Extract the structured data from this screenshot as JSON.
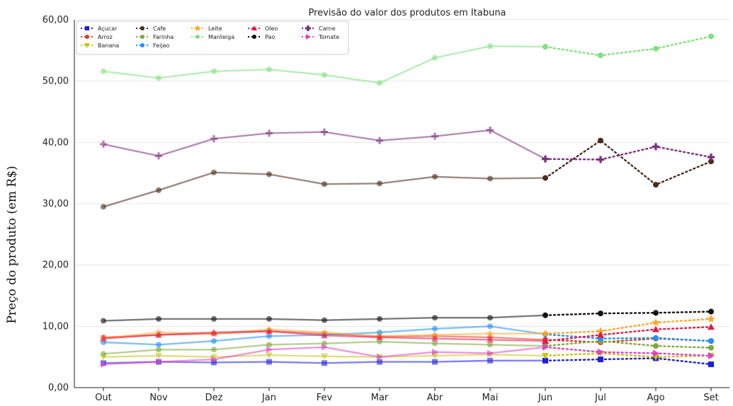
{
  "chart_data": {
    "type": "line",
    "title": "Previsão do valor dos produtos em Itabuna",
    "ylabel": "Preço do produto (em R$)",
    "xlabel": "",
    "categories": [
      "Out",
      "Nov",
      "Dez",
      "Jan",
      "Fev",
      "Mar",
      "Abr",
      "Mai",
      "Jun",
      "Jul",
      "Ago",
      "Set"
    ],
    "ylim": [
      0,
      60
    ],
    "yticks": [
      {
        "value": 0,
        "label": "0,00"
      },
      {
        "value": 10,
        "label": "10,00"
      },
      {
        "value": 20,
        "label": "20,00"
      },
      {
        "value": 30,
        "label": "30,00"
      },
      {
        "value": 40,
        "label": "40,00"
      },
      {
        "value": 50,
        "label": "50,00"
      },
      {
        "value": 60,
        "label": "60,00"
      }
    ],
    "grid": "horizontal",
    "legend_position": "top-left",
    "forecast_start_index": 8,
    "series": [
      {
        "name": "Açucar",
        "color": "#1f1fd8",
        "marker": "square",
        "values": [
          4.0,
          4.2,
          4.1,
          4.2,
          4.0,
          4.2,
          4.2,
          4.4,
          4.4,
          4.6,
          4.8,
          3.8
        ]
      },
      {
        "name": "Arroz",
        "color": "#e03a2b",
        "marker": "circle",
        "values": [
          8.2,
          8.6,
          8.8,
          9.2,
          8.8,
          8.3,
          8.4,
          8.2,
          7.8,
          7.4,
          8.0,
          7.6
        ]
      },
      {
        "name": "Banana",
        "color": "#c9c417",
        "marker": "triangle-down",
        "values": [
          5.0,
          5.2,
          5.0,
          5.3,
          5.1,
          5.0,
          5.2,
          5.4,
          5.2,
          5.6,
          5.0,
          5.2
        ]
      },
      {
        "name": "Cafe",
        "color": "#4a2a1e",
        "marker": "circle",
        "values": [
          29.5,
          32.2,
          35.1,
          34.8,
          33.2,
          33.3,
          34.4,
          34.1,
          34.2,
          40.3,
          33.1,
          36.9
        ]
      },
      {
        "name": "Farinha",
        "color": "#7fa83a",
        "marker": "circle",
        "values": [
          5.5,
          6.2,
          6.2,
          7.0,
          7.2,
          7.5,
          7.2,
          7.0,
          6.8,
          7.6,
          6.8,
          6.5
        ]
      },
      {
        "name": "Feijao",
        "color": "#1e90ff",
        "marker": "circle",
        "values": [
          7.4,
          7.0,
          7.6,
          8.4,
          8.6,
          9.0,
          9.6,
          10.0,
          8.7,
          8.0,
          8.1,
          7.6
        ]
      },
      {
        "name": "Leite",
        "color": "#ffa726",
        "marker": "star",
        "values": [
          8.0,
          9.0,
          8.8,
          9.5,
          9.0,
          8.4,
          8.6,
          8.8,
          8.8,
          9.2,
          10.6,
          11.2
        ]
      },
      {
        "name": "Manteiga",
        "color": "#7ee27e",
        "marker": "circle",
        "values": [
          51.6,
          50.5,
          51.6,
          51.9,
          51.0,
          49.7,
          53.8,
          55.7,
          55.6,
          54.2,
          55.3,
          57.3
        ]
      },
      {
        "name": "Oleo",
        "color": "#e6194b",
        "marker": "triangle-up",
        "values": [
          8.0,
          8.6,
          9.0,
          9.2,
          8.5,
          8.2,
          8.0,
          7.8,
          7.6,
          8.6,
          9.5,
          9.9
        ]
      },
      {
        "name": "Pao",
        "color": "#111111",
        "marker": "circle",
        "values": [
          10.9,
          11.2,
          11.2,
          11.2,
          11.0,
          11.2,
          11.4,
          11.4,
          11.8,
          12.1,
          12.2,
          12.4
        ]
      },
      {
        "name": "Carne",
        "color": "#7b2d80",
        "marker": "plus",
        "values": [
          39.7,
          37.8,
          40.6,
          41.5,
          41.7,
          40.3,
          41.0,
          42.0,
          37.3,
          37.2,
          39.3,
          37.6
        ]
      },
      {
        "name": "Tomate",
        "color": "#e040c8",
        "marker": "triangle-right",
        "values": [
          3.8,
          4.2,
          4.6,
          6.2,
          6.6,
          5.0,
          5.8,
          5.6,
          6.6,
          5.8,
          5.6,
          5.2
        ]
      }
    ]
  }
}
